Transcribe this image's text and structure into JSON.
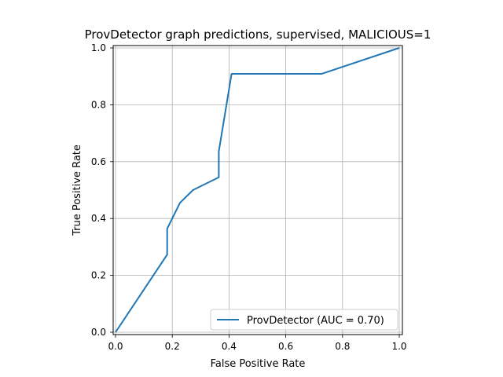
{
  "chart_data": {
    "type": "line",
    "title": "ProvDetector graph predictions, supervised, MALICIOUS=1",
    "xlabel": "False Positive Rate",
    "ylabel": "True Positive Rate",
    "xlim": [
      0,
      1
    ],
    "ylim": [
      0,
      1
    ],
    "grid": true,
    "legend_position": "lower-right",
    "x_ticks": [
      "0.0",
      "0.2",
      "0.4",
      "0.6",
      "0.8",
      "1.0"
    ],
    "y_ticks": [
      "0.0",
      "0.2",
      "0.4",
      "0.6",
      "0.8",
      "1.0"
    ],
    "series": [
      {
        "name": "ProvDetector (AUC = 0.70)",
        "color": "#1f77b4",
        "x": [
          0.0,
          0.182,
          0.182,
          0.227,
          0.273,
          0.364,
          0.364,
          0.409,
          0.727,
          1.0
        ],
        "y": [
          0.0,
          0.273,
          0.364,
          0.455,
          0.5,
          0.545,
          0.636,
          0.909,
          0.909,
          1.0
        ]
      }
    ]
  }
}
